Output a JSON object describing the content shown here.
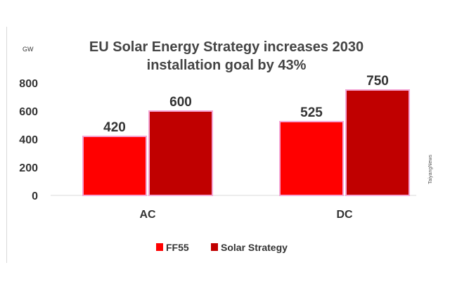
{
  "chart_data": {
    "type": "bar",
    "title_lines": [
      "EU Solar Energy Strategy increases 2030",
      "installation goal by 43%"
    ],
    "unit_label": "GW",
    "categories": [
      "AC",
      "DC"
    ],
    "series": [
      {
        "name": "FF55",
        "values": [
          420,
          525
        ],
        "color": "#ff0000"
      },
      {
        "name": "Solar Strategy",
        "values": [
          600,
          750
        ],
        "color": "#c00000"
      }
    ],
    "ylim": [
      0,
      800
    ],
    "yticks": [
      "0",
      "200",
      "400",
      "600",
      "800"
    ],
    "data_labels": [
      [
        "420",
        "525"
      ],
      [
        "600",
        "750"
      ]
    ],
    "grid": false,
    "legend": "bottom",
    "bar_outline_color": "#f4a6d6",
    "side_note": "TaiyangNews"
  }
}
